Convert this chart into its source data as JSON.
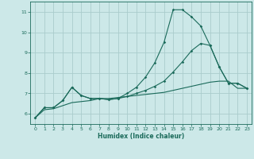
{
  "xlabel": "Humidex (Indice chaleur)",
  "xlim": [
    -0.5,
    23.5
  ],
  "ylim": [
    5.5,
    11.5
  ],
  "yticks": [
    6,
    7,
    8,
    9,
    10,
    11
  ],
  "xticks": [
    0,
    1,
    2,
    3,
    4,
    5,
    6,
    7,
    8,
    9,
    10,
    11,
    12,
    13,
    14,
    15,
    16,
    17,
    18,
    19,
    20,
    21,
    22,
    23
  ],
  "bg_color": "#cce8e8",
  "grid_color": "#aacccc",
  "line_color": "#1a6a5a",
  "line1_x": [
    0,
    1,
    2,
    3,
    4,
    5,
    6,
    7,
    8,
    9,
    10,
    11,
    12,
    13,
    14,
    15,
    16,
    17,
    18,
    19,
    20,
    21,
    22,
    23
  ],
  "line1_y": [
    5.8,
    6.3,
    6.3,
    6.65,
    7.3,
    6.9,
    6.75,
    6.75,
    6.7,
    6.75,
    7.0,
    7.3,
    7.8,
    8.5,
    9.5,
    11.1,
    11.1,
    10.75,
    10.3,
    9.35,
    8.3,
    7.5,
    7.5,
    7.25
  ],
  "line2_x": [
    0,
    1,
    2,
    3,
    4,
    5,
    6,
    7,
    8,
    9,
    10,
    11,
    12,
    13,
    14,
    15,
    16,
    17,
    18,
    19,
    20,
    21,
    22,
    23
  ],
  "line2_y": [
    5.8,
    6.3,
    6.3,
    6.65,
    7.3,
    6.9,
    6.75,
    6.75,
    6.7,
    6.75,
    6.85,
    7.0,
    7.15,
    7.35,
    7.6,
    8.05,
    8.55,
    9.1,
    9.45,
    9.35,
    8.3,
    7.5,
    7.5,
    7.25
  ],
  "line3_x": [
    0,
    1,
    2,
    3,
    4,
    5,
    6,
    7,
    8,
    9,
    10,
    11,
    12,
    13,
    14,
    15,
    16,
    17,
    18,
    19,
    20,
    21,
    22,
    23
  ],
  "line3_y": [
    5.8,
    6.2,
    6.25,
    6.4,
    6.55,
    6.6,
    6.65,
    6.75,
    6.75,
    6.8,
    6.85,
    6.9,
    6.95,
    7.0,
    7.05,
    7.15,
    7.25,
    7.35,
    7.45,
    7.55,
    7.6,
    7.6,
    7.25,
    7.25
  ]
}
